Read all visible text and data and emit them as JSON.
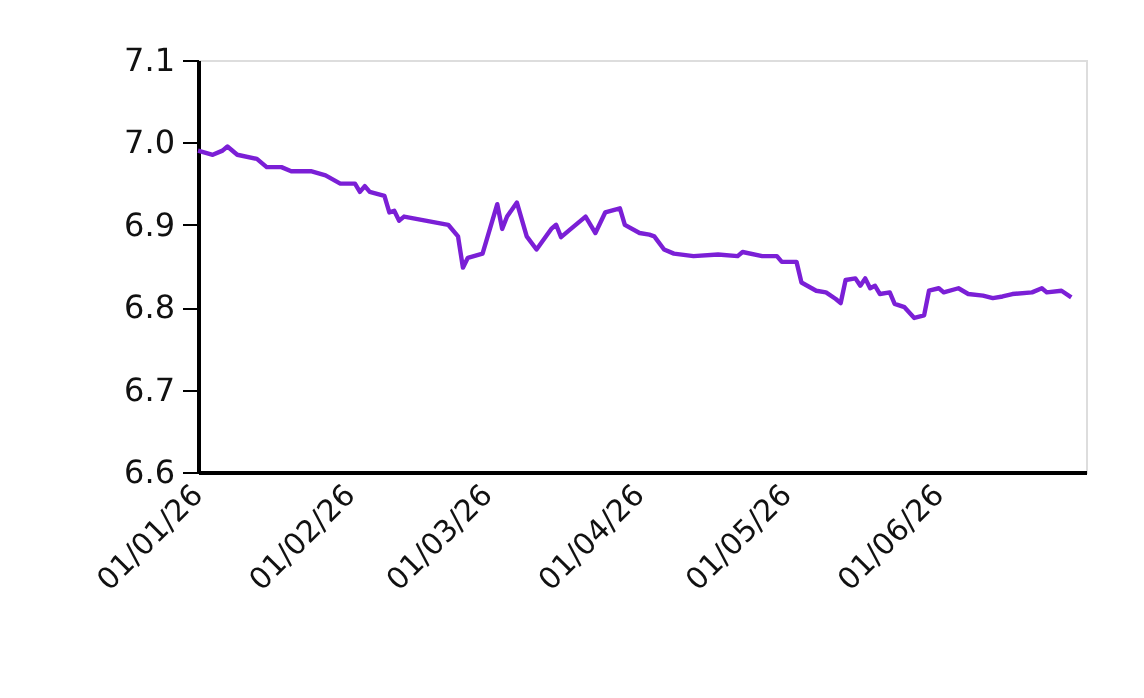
{
  "chart_data": {
    "type": "line",
    "x": [
      "2025-12-30",
      "2026-01-02",
      "2026-01-04",
      "2026-01-05",
      "2026-01-07",
      "2026-01-11",
      "2026-01-13",
      "2026-01-16",
      "2026-01-18",
      "2026-01-22",
      "2026-01-25",
      "2026-01-28",
      "2026-01-31",
      "2026-02-01",
      "2026-02-02",
      "2026-02-03",
      "2026-02-06",
      "2026-02-07",
      "2026-02-08",
      "2026-02-09",
      "2026-02-10",
      "2026-02-19",
      "2026-02-21",
      "2026-02-22",
      "2026-02-23",
      "2026-02-26",
      "2026-02-28",
      "2026-03-01",
      "2026-03-02",
      "2026-03-03",
      "2026-03-05",
      "2026-03-07",
      "2026-03-09",
      "2026-03-12",
      "2026-03-13",
      "2026-03-14",
      "2026-03-16",
      "2026-03-19",
      "2026-03-21",
      "2026-03-23",
      "2026-03-26",
      "2026-03-27",
      "2026-03-30",
      "2026-04-01",
      "2026-04-02",
      "2026-04-04",
      "2026-04-06",
      "2026-04-10",
      "2026-04-15",
      "2026-04-19",
      "2026-04-20",
      "2026-04-24",
      "2026-04-27",
      "2026-04-28",
      "2026-05-01",
      "2026-05-02",
      "2026-05-05",
      "2026-05-07",
      "2026-05-09",
      "2026-05-10",
      "2026-05-11",
      "2026-05-13",
      "2026-05-14",
      "2026-05-15",
      "2026-05-16",
      "2026-05-17",
      "2026-05-18",
      "2026-05-20",
      "2026-05-21",
      "2026-05-23",
      "2026-05-25",
      "2026-05-27",
      "2026-05-28",
      "2026-05-30",
      "2026-05-31",
      "2026-06-03",
      "2026-06-05",
      "2026-06-08",
      "2026-06-10",
      "2026-06-12",
      "2026-06-14",
      "2026-06-18",
      "2026-06-20",
      "2026-06-21",
      "2026-06-24",
      "2026-06-26"
    ],
    "series": [
      {
        "color": "#7b1fd6",
        "values": [
          6.99,
          6.985,
          6.99,
          6.995,
          6.985,
          6.98,
          6.97,
          6.97,
          6.965,
          6.965,
          6.96,
          6.95,
          6.95,
          6.94,
          6.947,
          6.94,
          6.935,
          6.915,
          6.917,
          6.905,
          6.91,
          6.9,
          6.886,
          6.848,
          6.86,
          6.865,
          6.905,
          6.925,
          6.895,
          6.91,
          6.927,
          6.886,
          6.87,
          6.895,
          6.9,
          6.885,
          6.895,
          6.91,
          6.89,
          6.915,
          6.92,
          6.9,
          6.89,
          6.888,
          6.886,
          6.87,
          6.865,
          6.862,
          6.864,
          6.862,
          6.867,
          6.862,
          6.862,
          6.855,
          6.855,
          6.83,
          6.82,
          6.818,
          6.81,
          6.805,
          6.833,
          6.835,
          6.826,
          6.835,
          6.823,
          6.826,
          6.816,
          6.818,
          6.804,
          6.8,
          6.787,
          6.79,
          6.82,
          6.823,
          6.818,
          6.823,
          6.816,
          6.814,
          6.811,
          6.813,
          6.816,
          6.818,
          6.823,
          6.818,
          6.82,
          6.812
        ]
      }
    ],
    "xlim": [
      "2025-12-30",
      "2026-06-29"
    ],
    "xticks": [
      {
        "value": "2026-01-01",
        "label": "01/01/26"
      },
      {
        "value": "2026-02-01",
        "label": "01/02/26"
      },
      {
        "value": "2026-03-01",
        "label": "01/03/26"
      },
      {
        "value": "2026-04-01",
        "label": "01/04/26"
      },
      {
        "value": "2026-05-01",
        "label": "01/05/26"
      },
      {
        "value": "2026-06-01",
        "label": "01/06/26"
      }
    ],
    "ylim": [
      6.6,
      7.1
    ],
    "yticks": [
      6.6,
      6.7,
      6.8,
      6.9,
      {
        "value": 7.0,
        "label": "7.0"
      },
      7.1
    ],
    "grid": false,
    "legend": false,
    "marker": "none",
    "line_style": "solid"
  }
}
